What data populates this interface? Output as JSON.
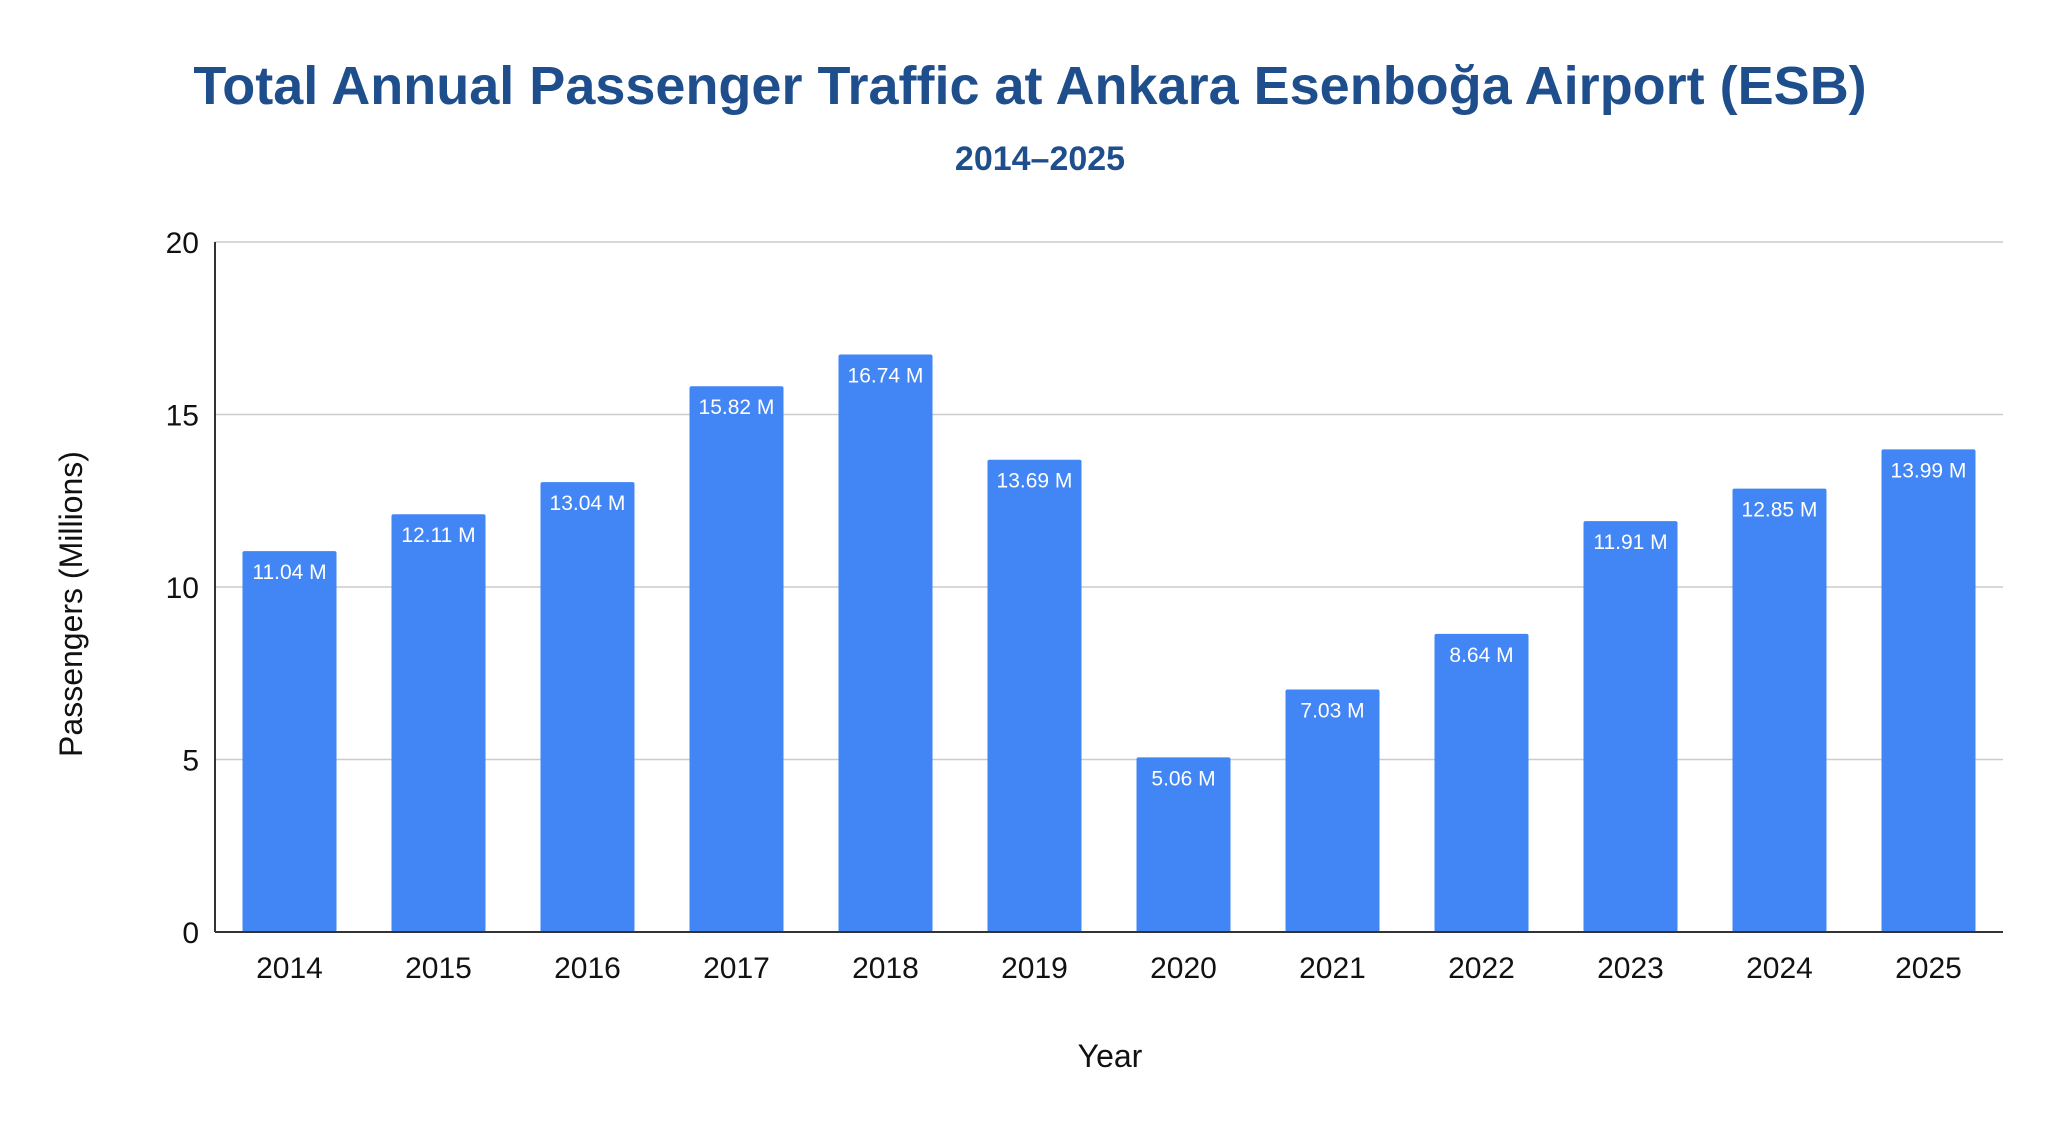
{
  "colors": {
    "title": "#1f4e8c",
    "bar": "#4285f4",
    "grid": "#cccccc",
    "axis": "#333333",
    "text": "#111111",
    "data_label": "#ffffff"
  },
  "chart_data": {
    "type": "bar",
    "title": "Total Annual Passenger Traffic at Ankara Esenboğa Airport (ESB)",
    "subtitle": "2014–2025",
    "xlabel": "Year",
    "ylabel": "Passengers (Millions)",
    "ylim": [
      0,
      20
    ],
    "yticks": [
      0,
      5,
      10,
      15,
      20
    ],
    "grid": true,
    "legend": "none",
    "categories": [
      "2014",
      "2015",
      "2016",
      "2017",
      "2018",
      "2019",
      "2020",
      "2021",
      "2022",
      "2023",
      "2024",
      "2025"
    ],
    "values": [
      11.04,
      12.11,
      13.04,
      15.82,
      16.74,
      13.69,
      5.06,
      7.03,
      8.64,
      11.91,
      12.85,
      13.99
    ],
    "data_labels": [
      "11.04 M",
      "12.11 M",
      "13.04 M",
      "15.82 M",
      "16.74 M",
      "13.69 M",
      "5.06 M",
      "7.03 M",
      "8.64 M",
      "11.91 M",
      "12.85 M",
      "13.99 M"
    ]
  }
}
